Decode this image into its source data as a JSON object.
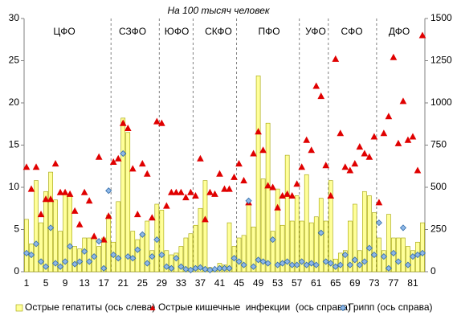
{
  "chart_data": {
    "type": "bar_line_combo",
    "title": "На 100 тысяч человек",
    "annotations": [
      "ЦФО",
      "СЗФО",
      "ЮФО",
      "СКФО",
      "ПФО",
      "УФО",
      "СФО",
      "ДФО"
    ],
    "categories": [
      "1",
      null,
      null,
      null,
      "5",
      null,
      null,
      null,
      "9",
      null,
      null,
      null,
      "13",
      null,
      null,
      null,
      "17",
      null,
      null,
      null,
      "21",
      null,
      null,
      null,
      "25",
      null,
      null,
      null,
      "29",
      null,
      null,
      null,
      "33",
      null,
      null,
      null,
      "37",
      null,
      null,
      null,
      "41",
      null,
      null,
      null,
      "45",
      null,
      null,
      null,
      "49",
      null,
      null,
      null,
      "53",
      null,
      null,
      null,
      "57",
      null,
      null,
      null,
      "61",
      null,
      null,
      null,
      "65",
      null,
      null,
      null,
      "69",
      null,
      null,
      null,
      "73",
      null,
      null,
      null,
      "77",
      null,
      null,
      null,
      "81",
      null,
      null
    ],
    "series": [
      {
        "name": "Острые гепатиты (ось слева)",
        "color": "#ffff99",
        "edge": "#a0a000",
        "marker": "bar",
        "axis": "y",
        "values": [
          6.2,
          3.3,
          10.8,
          5.8,
          9.5,
          11.8,
          8.5,
          4.8,
          9.2,
          9.0,
          3.0,
          2.7,
          4.0,
          4.0,
          4.0,
          3.0,
          4.0,
          6.7,
          3.5,
          8.3,
          18.2,
          16.5,
          4.8,
          3.8,
          4.5,
          6.0,
          2.5,
          8.0,
          7.3,
          2.5,
          2.0,
          2.2,
          3.0,
          4.0,
          4.5,
          5.5,
          7.5,
          10.8,
          0.5,
          0.3,
          1.0,
          0.8,
          5.8,
          3.0,
          4.0,
          4.3,
          8.0,
          5.3,
          23.2,
          11.0,
          17.6,
          4.8,
          9.8,
          5.5,
          13.8,
          6.0,
          9.0,
          6.0,
          11.5,
          5.8,
          6.5,
          8.7,
          6.0,
          10.8,
          1.5,
          2.2,
          2.5,
          6.0,
          8.0,
          2.5,
          9.5,
          9.0,
          7.0,
          4.0,
          2.5,
          6.8,
          4.0,
          4.0,
          4.0,
          3.0,
          2.5,
          3.5,
          5.8
        ]
      },
      {
        "name": "Острые кишечные  инфекции  (ось справа)",
        "color": "#e00000",
        "edge": "#e00000",
        "marker": "triangle",
        "axis": "y2",
        "values": [
          620,
          490,
          620,
          340,
          430,
          430,
          640,
          470,
          470,
          460,
          360,
          280,
          470,
          420,
          210,
          680,
          190,
          330,
          650,
          670,
          880,
          850,
          610,
          340,
          640,
          580,
          320,
          890,
          880,
          390,
          470,
          470,
          470,
          440,
          470,
          450,
          670,
          310,
          470,
          460,
          580,
          490,
          490,
          560,
          640,
          540,
          410,
          700,
          830,
          720,
          510,
          500,
          380,
          450,
          460,
          450,
          520,
          620,
          780,
          720,
          1100,
          1040,
          630,
          450,
          1260,
          820,
          620,
          600,
          640,
          740,
          700,
          680,
          800,
          410,
          820,
          920,
          1270,
          760,
          1010,
          780,
          800,
          600,
          1400
        ]
      },
      {
        "name": "Грипп (ось справа)",
        "color": "#8fb8e8",
        "edge": "#2e6aa8",
        "marker": "diamond",
        "axis": "y2",
        "values": [
          110,
          100,
          165,
          60,
          30,
          260,
          50,
          30,
          60,
          150,
          45,
          60,
          120,
          60,
          90,
          180,
          20,
          480,
          100,
          80,
          700,
          90,
          80,
          130,
          220,
          50,
          90,
          190,
          100,
          30,
          20,
          80,
          30,
          15,
          10,
          20,
          25,
          15,
          10,
          15,
          20,
          20,
          20,
          80,
          60,
          40,
          420,
          30,
          70,
          60,
          50,
          190,
          40,
          50,
          60,
          40,
          40,
          60,
          40,
          50,
          40,
          230,
          60,
          50,
          30,
          40,
          100,
          40,
          70,
          40,
          60,
          140,
          100,
          290,
          90,
          20,
          110,
          60,
          260,
          40,
          90,
          100,
          110
        ]
      }
    ],
    "ylim": [
      0,
      30
    ],
    "yticks": [
      0,
      5,
      10,
      15,
      20,
      25,
      30
    ],
    "y2lim": [
      0,
      1500
    ],
    "y2ticks": [
      0,
      250,
      500,
      750,
      1000,
      1250,
      1500
    ]
  }
}
